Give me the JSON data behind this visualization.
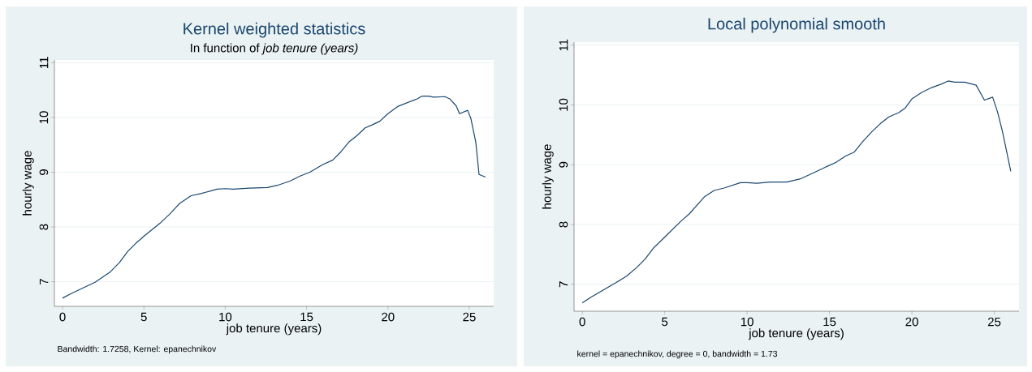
{
  "chart_data": [
    {
      "type": "line",
      "title": "Kernel weighted statistics",
      "subtitle": "In function of *job tenure (years)*",
      "xlabel": "job tenure (years)",
      "ylabel": "hourly wage",
      "annotations": [
        "Bandwidth: 1.7258, Kernel: epanechnikov"
      ],
      "grid": "y",
      "xlim": [
        -0.5,
        26.5
      ],
      "ylim": [
        6.55,
        11.05
      ],
      "xticks": [
        0,
        5,
        10,
        15,
        20,
        25
      ],
      "yticks": [
        7,
        8,
        9,
        10,
        11
      ],
      "series": [
        {
          "color": "#1a476f",
          "x": [
            0,
            0.5,
            1,
            2,
            2.9,
            3.5,
            4,
            4.5,
            5,
            6,
            6.6,
            7.2,
            7.9,
            8.5,
            9.5,
            10,
            10.5,
            11.5,
            12.6,
            13.2,
            14,
            14.6,
            15.2,
            16,
            16.6,
            17.1,
            17.6,
            18.1,
            18.6,
            19,
            19.5,
            20,
            20.6,
            21.2,
            21.8,
            22.1,
            22.5,
            22.8,
            23.5,
            23.8,
            24.2,
            24.4,
            24.9,
            25.1,
            25.4,
            25.6,
            26
          ],
          "values": [
            6.7,
            6.78,
            6.85,
            6.99,
            7.17,
            7.35,
            7.55,
            7.7,
            7.83,
            8.07,
            8.24,
            8.43,
            8.57,
            8.61,
            8.69,
            8.7,
            8.69,
            8.71,
            8.72,
            8.76,
            8.84,
            8.93,
            9.0,
            9.14,
            9.22,
            9.37,
            9.55,
            9.67,
            9.81,
            9.86,
            9.93,
            10.07,
            10.2,
            10.27,
            10.34,
            10.39,
            10.39,
            10.37,
            10.38,
            10.34,
            10.21,
            10.07,
            10.13,
            9.98,
            9.55,
            8.96,
            8.91
          ]
        }
      ]
    },
    {
      "type": "line",
      "title": "Local polynomial smooth",
      "xlabel": "job tenure (years)",
      "ylabel": "hourly wage",
      "annotations": [
        "kernel = epanechnikov, degree = 0, bandwidth = 1.73"
      ],
      "grid": "y",
      "xlim": [
        -0.5,
        26.5
      ],
      "ylim": [
        6.55,
        11.05
      ],
      "xticks": [
        0,
        5,
        10,
        15,
        20,
        25
      ],
      "yticks": [
        7,
        8,
        9,
        10,
        11
      ],
      "series": [
        {
          "color": "#1a476f",
          "x": [
            0,
            0.5,
            1,
            2,
            2.7,
            3.3,
            3.8,
            4.3,
            5,
            6,
            6.5,
            7.4,
            8,
            8.6,
            9.6,
            10,
            10.6,
            11.4,
            12.4,
            13.2,
            14,
            14.6,
            15.4,
            16,
            16.5,
            17,
            17.6,
            18.1,
            18.6,
            19.2,
            19.6,
            20,
            20.6,
            21.2,
            21.8,
            22.2,
            22.6,
            23.2,
            23.9,
            24.4,
            24.9,
            25.2,
            25.5,
            26
          ],
          "values": [
            6.69,
            6.78,
            6.86,
            7.02,
            7.14,
            7.28,
            7.42,
            7.6,
            7.79,
            8.06,
            8.18,
            8.46,
            8.57,
            8.61,
            8.7,
            8.7,
            8.69,
            8.71,
            8.71,
            8.76,
            8.86,
            8.94,
            9.04,
            9.15,
            9.21,
            9.38,
            9.56,
            9.69,
            9.8,
            9.87,
            9.95,
            10.1,
            10.21,
            10.29,
            10.35,
            10.4,
            10.38,
            10.38,
            10.33,
            10.08,
            10.13,
            9.88,
            9.55,
            8.89
          ]
        }
      ]
    }
  ]
}
